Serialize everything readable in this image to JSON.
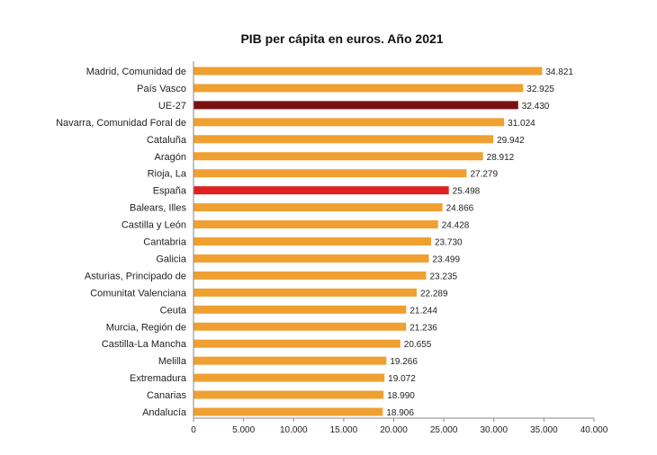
{
  "chart_data": {
    "type": "bar",
    "orientation": "horizontal",
    "title": "PIB per cápita en euros. Año 2021",
    "xlabel": "",
    "ylabel": "",
    "xlim": [
      0,
      40000
    ],
    "grid": false,
    "legend": "none",
    "categories": [
      "Madrid, Comunidad de",
      "País Vasco",
      "UE-27",
      "Navarra, Comunidad Foral de",
      "Cataluña",
      "Aragón",
      "Rioja, La",
      "España",
      "Balears, Illes",
      "Castilla y León",
      "Cantabria",
      "Galicia",
      "Asturias, Principado de",
      "Comunitat Valenciana",
      "Ceuta",
      "Murcia, Región de",
      "Castilla-La Mancha",
      "Melilla",
      "Extremadura",
      "Canarias",
      "Andalucía"
    ],
    "values": [
      34821,
      32925,
      32430,
      31024,
      29942,
      28912,
      27279,
      25498,
      24866,
      24428,
      23730,
      23499,
      23235,
      22289,
      21244,
      21236,
      20655,
      19266,
      19072,
      18990,
      18906
    ],
    "value_labels": [
      "34.821",
      "32.925",
      "32.430",
      "31.024",
      "29.942",
      "28.912",
      "27.279",
      "25.498",
      "24.866",
      "24.428",
      "23.730",
      "23.499",
      "23.235",
      "22.289",
      "21.244",
      "21.236",
      "20.655",
      "19.266",
      "19.072",
      "18.990",
      "18.906"
    ],
    "x_ticks": [
      0,
      5000,
      10000,
      15000,
      20000,
      25000,
      30000,
      35000,
      40000
    ],
    "x_tick_labels": [
      "0",
      "5.000",
      "10.000",
      "15.000",
      "20.000",
      "25.000",
      "30.000",
      "35.000",
      "40.000"
    ],
    "colors": {
      "default": "#F0A030",
      "highlight_eu": "#7A1010",
      "highlight_spain": "#E02020"
    },
    "highlighted": {
      "UE-27": "highlight_eu",
      "España": "highlight_spain"
    }
  }
}
